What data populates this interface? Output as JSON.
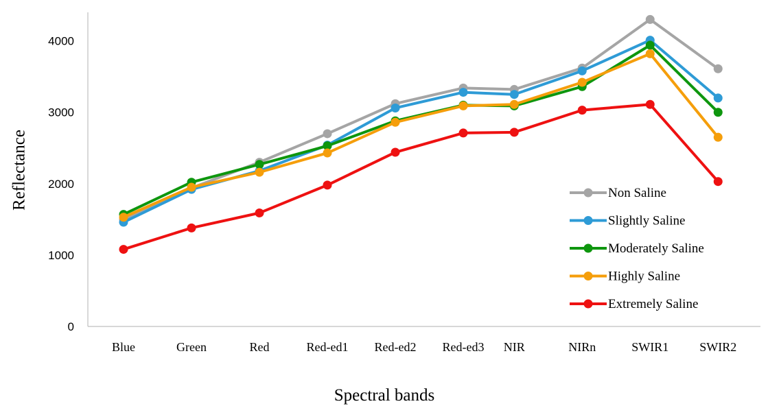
{
  "chart_data": {
    "type": "line",
    "xlabel": "Spectral bands",
    "ylabel": "Reflectance",
    "categories": [
      "Blue",
      "Green",
      "Red",
      "Red-ed1",
      "Red-ed2",
      "Red-ed3",
      "NIR",
      "NIRn",
      "SWIR1",
      "SWIR2"
    ],
    "category_positions": [
      1,
      2,
      3,
      4,
      5,
      6,
      6.75,
      7.75,
      8.75,
      9.75
    ],
    "ylim": [
      0,
      4400
    ],
    "yticks": [
      0,
      1000,
      2000,
      3000,
      4000
    ],
    "grid": false,
    "legend": "right",
    "series": [
      {
        "name": "Non Saline",
        "color": "#a5a5a5",
        "values": [
          1500,
          1940,
          2300,
          2700,
          3120,
          3340,
          3320,
          3620,
          4300,
          3610
        ]
      },
      {
        "name": "Slightly Saline",
        "color": "#2e9bd6",
        "values": [
          1460,
          1920,
          2180,
          2540,
          3060,
          3280,
          3250,
          3580,
          4010,
          3200
        ]
      },
      {
        "name": "Moderately Saline",
        "color": "#0e960e",
        "values": [
          1570,
          2020,
          2270,
          2530,
          2880,
          3100,
          3090,
          3360,
          3940,
          3000
        ]
      },
      {
        "name": "Highly Saline",
        "color": "#f59e0b",
        "values": [
          1530,
          1950,
          2160,
          2430,
          2860,
          3090,
          3110,
          3420,
          3820,
          2650
        ]
      },
      {
        "name": "Extremely Saline",
        "color": "#ee1111",
        "values": [
          1080,
          1380,
          1590,
          1980,
          2440,
          2710,
          2720,
          3030,
          3110,
          2030
        ]
      }
    ]
  }
}
